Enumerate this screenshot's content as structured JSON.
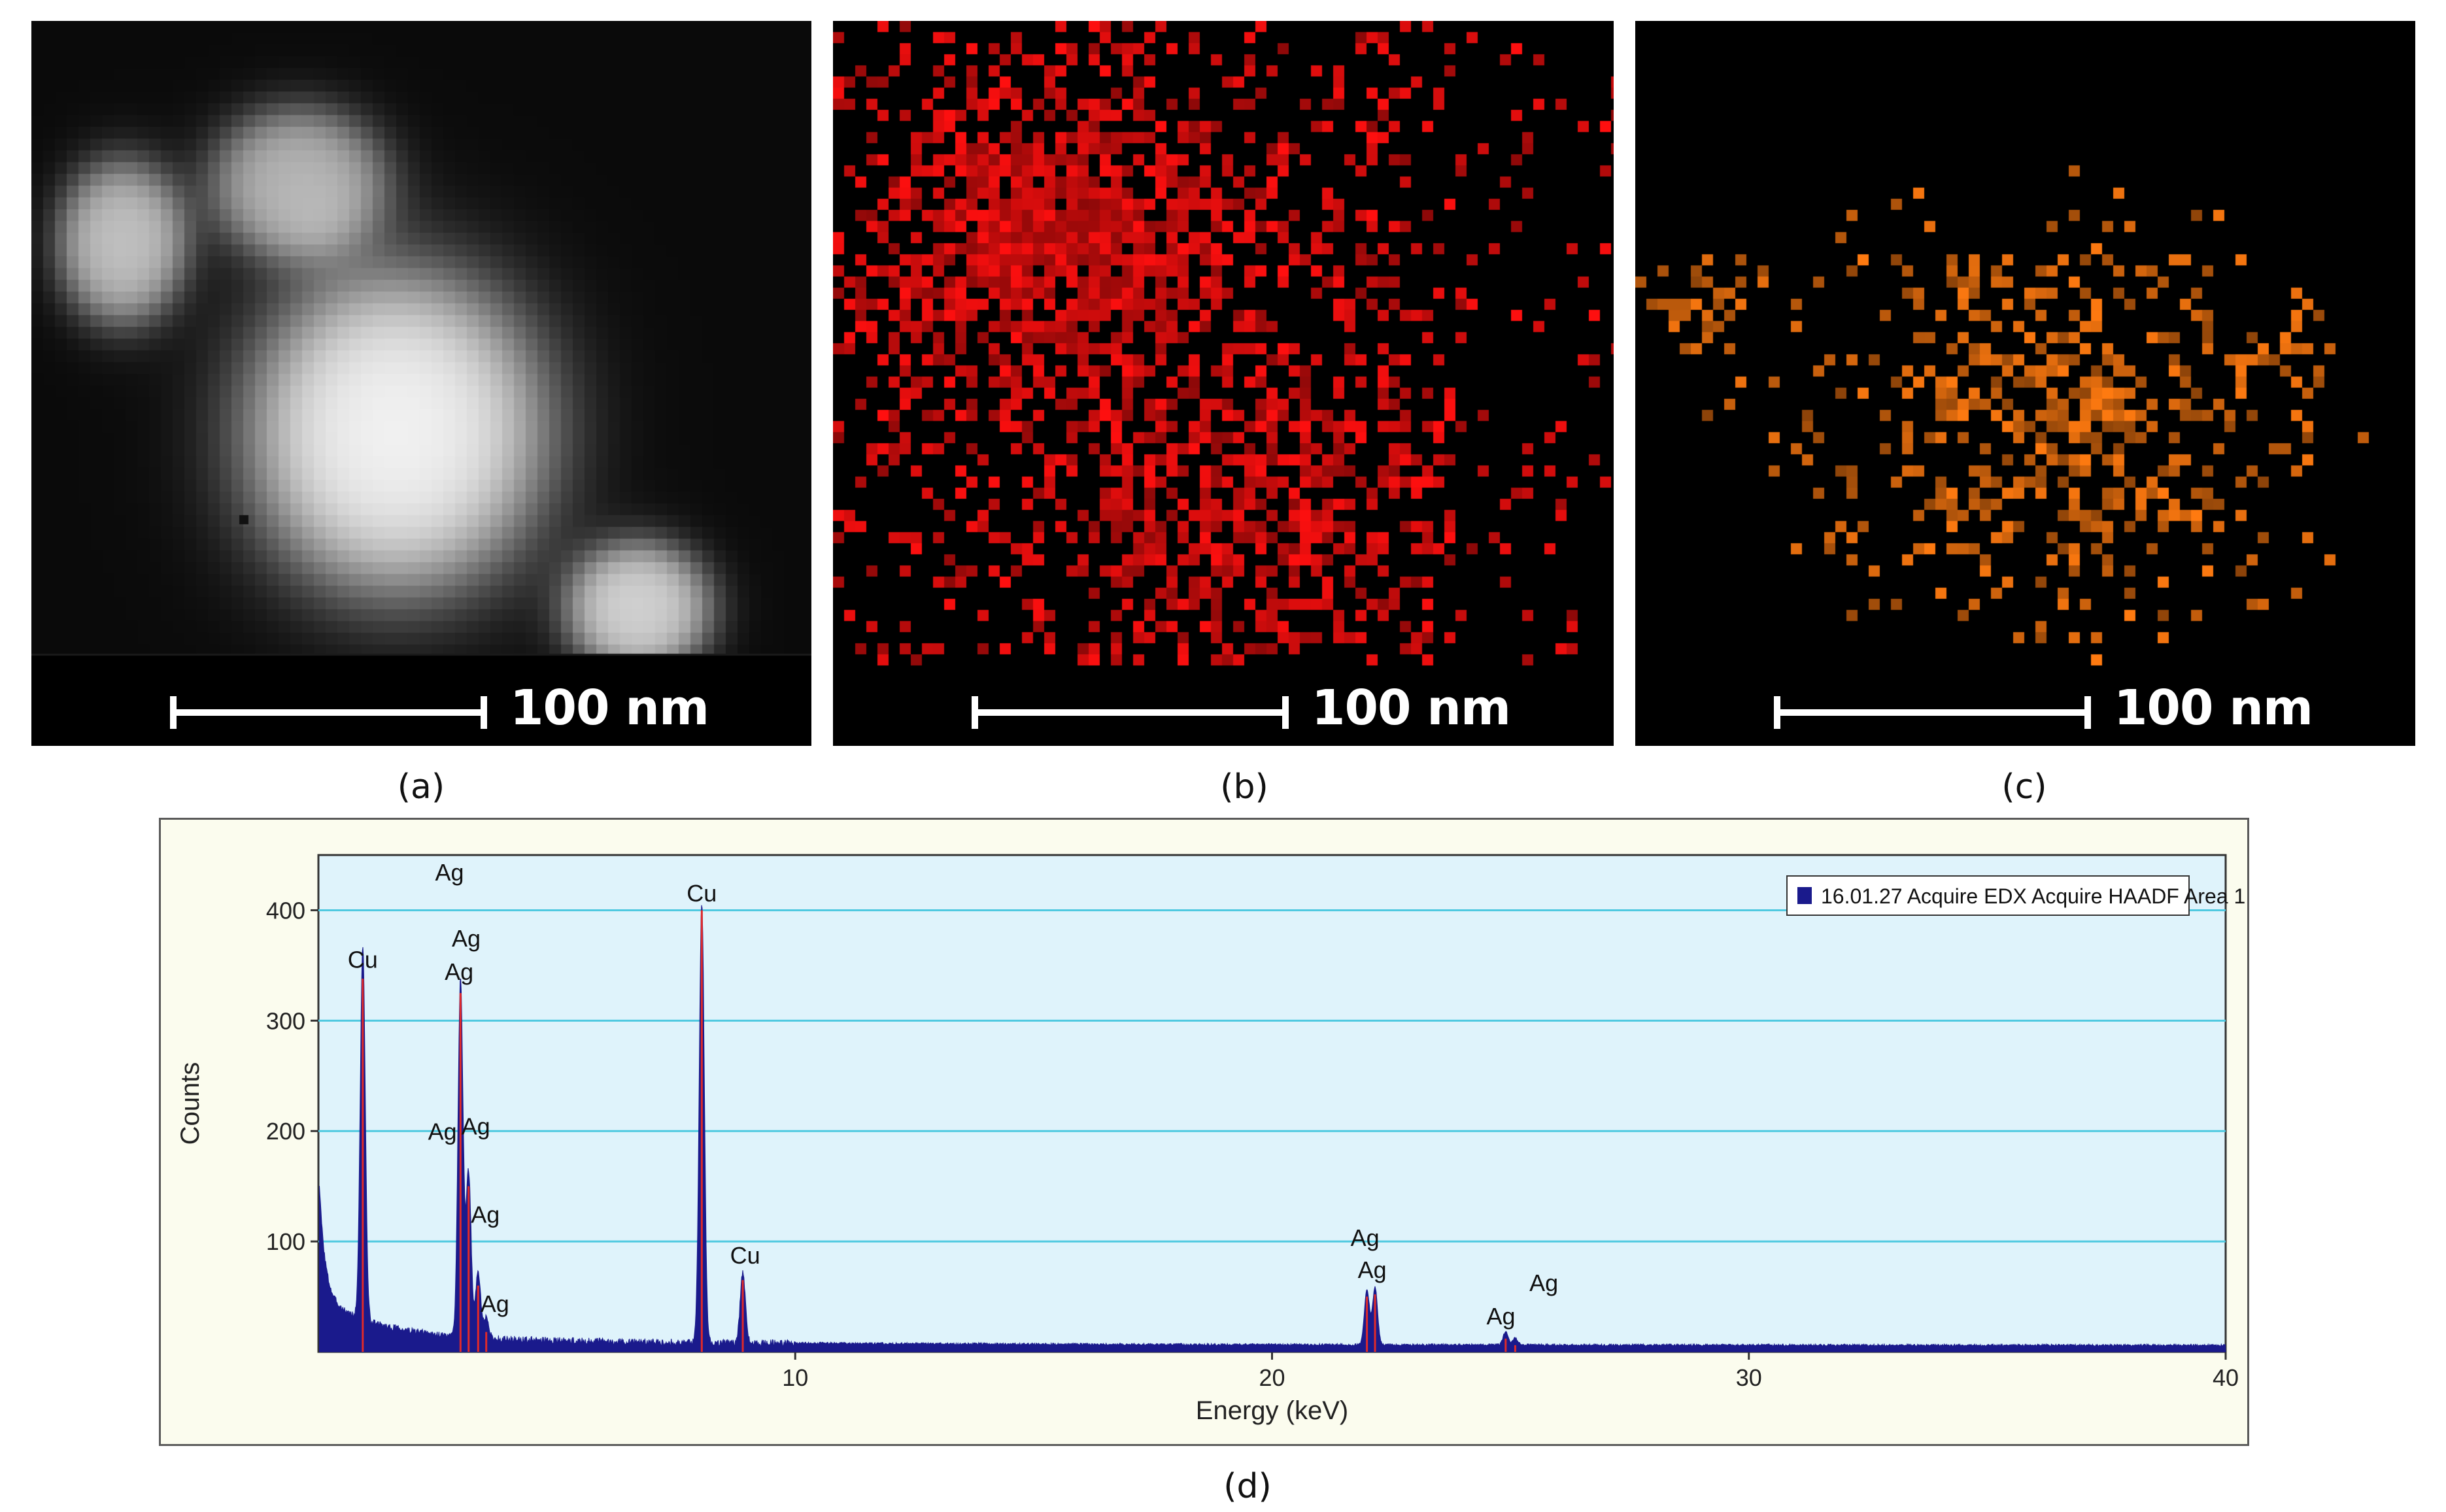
{
  "panels": [
    {
      "id": "a",
      "caption": "(a)",
      "scale_label": "100 nm",
      "kind": "haadf"
    },
    {
      "id": "b",
      "caption": "(b)",
      "scale_label": "100 nm",
      "kind": "map",
      "color": "#ff0f0f"
    },
    {
      "id": "c",
      "caption": "(c)",
      "scale_label": "100 nm",
      "kind": "map",
      "color": "#ff7a10"
    }
  ],
  "spectrum_caption": "(d)",
  "chart_data": {
    "type": "line",
    "title": "",
    "xlabel": "Energy (keV)",
    "ylabel": "Counts",
    "xlim": [
      0,
      40
    ],
    "ylim": [
      0,
      450
    ],
    "x_ticks": [
      10,
      20,
      30,
      40
    ],
    "y_ticks": [
      100,
      200,
      300,
      400
    ],
    "grid": "horizontal",
    "legend": {
      "placement": "top-right",
      "entries": [
        "16.01.27 Acquire EDX Acquire HAADF Area 1"
      ]
    },
    "series": [
      {
        "name": "16.01.27 Acquire EDX Acquire HAADF Area 1",
        "color": "#1a1a8c",
        "peaks": [
          {
            "x": 0.93,
            "y": 338
          },
          {
            "x": 2.98,
            "y": 325
          },
          {
            "x": 3.15,
            "y": 150
          },
          {
            "x": 3.35,
            "y": 60
          },
          {
            "x": 3.52,
            "y": 18
          },
          {
            "x": 8.04,
            "y": 400
          },
          {
            "x": 8.9,
            "y": 65
          },
          {
            "x": 21.99,
            "y": 50
          },
          {
            "x": 22.16,
            "y": 52
          },
          {
            "x": 24.9,
            "y": 12
          },
          {
            "x": 25.1,
            "y": 6
          }
        ]
      }
    ],
    "annotations": [
      {
        "text": "Cu",
        "x": 0.93,
        "y": 348
      },
      {
        "text": "Ag",
        "x": 2.75,
        "y": 427
      },
      {
        "text": "Ag",
        "x": 3.1,
        "y": 367
      },
      {
        "text": "Ag",
        "x": 2.95,
        "y": 337
      },
      {
        "text": "Ag",
        "x": 2.6,
        "y": 192
      },
      {
        "text": "Ag",
        "x": 3.3,
        "y": 197
      },
      {
        "text": "Ag",
        "x": 3.5,
        "y": 117
      },
      {
        "text": "Ag",
        "x": 3.7,
        "y": 36
      },
      {
        "text": "Cu",
        "x": 8.04,
        "y": 408
      },
      {
        "text": "Cu",
        "x": 8.95,
        "y": 80
      },
      {
        "text": "Ag",
        "x": 21.95,
        "y": 96
      },
      {
        "text": "Ag",
        "x": 22.1,
        "y": 67
      },
      {
        "text": "Ag",
        "x": 25.7,
        "y": 55
      },
      {
        "text": "Ag",
        "x": 24.8,
        "y": 25
      }
    ]
  }
}
